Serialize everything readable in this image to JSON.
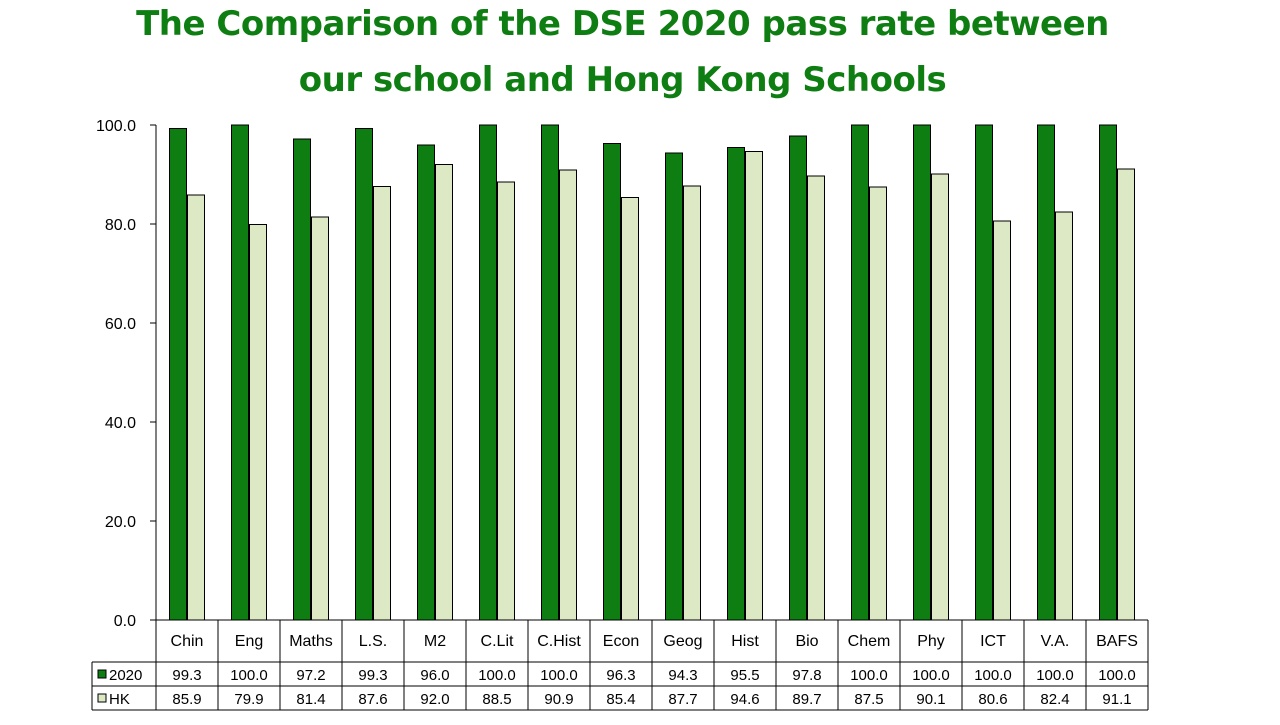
{
  "title_line1": "The Comparison of the DSE 2020 pass rate between",
  "title_line2": "our school and Hong Kong Schools",
  "colors": {
    "title": "#0e7d12",
    "series_2020": "#0e7d12",
    "series_hk": "#dde8c4"
  },
  "chart_data": {
    "type": "bar",
    "title": "The Comparison of the DSE 2020 pass rate between our school and Hong Kong Schools",
    "categories": [
      "Chin",
      "Eng",
      "Maths",
      "L.S.",
      "M2",
      "C.Lit",
      "C.Hist",
      "Econ",
      "Geog",
      "Hist",
      "Bio",
      "Chem",
      "Phy",
      "ICT",
      "V.A.",
      "BAFS"
    ],
    "series": [
      {
        "name": "2020",
        "values": [
          99.3,
          100.0,
          97.2,
          99.3,
          96.0,
          100.0,
          100.0,
          96.3,
          94.3,
          95.5,
          97.8,
          100.0,
          100.0,
          100.0,
          100.0,
          100.0
        ],
        "labels": [
          "99.3",
          "100.0",
          "97.2",
          "99.3",
          "96.0",
          "100.0",
          "100.0",
          "96.3",
          "94.3",
          "95.5",
          "97.8",
          "100.0",
          "100.0",
          "100.0",
          "100.0",
          "100.0"
        ]
      },
      {
        "name": "HK",
        "values": [
          85.9,
          79.9,
          81.4,
          87.6,
          92.0,
          88.5,
          90.9,
          85.4,
          87.7,
          94.6,
          89.7,
          87.5,
          90.1,
          80.6,
          82.4,
          91.1
        ],
        "labels": [
          "85.9",
          "79.9",
          "81.4",
          "87.6",
          "92.0",
          "88.5",
          "90.9",
          "85.4",
          "87.7",
          "94.6",
          "89.7",
          "87.5",
          "90.1",
          "80.6",
          "82.4",
          "91.1"
        ]
      }
    ],
    "yticks": [
      "0.0",
      "20.0",
      "40.0",
      "60.0",
      "80.0",
      "100.0"
    ],
    "ylim": [
      0,
      100
    ],
    "xlabel": "",
    "ylabel": "",
    "legend": "data-table",
    "grid": false
  }
}
